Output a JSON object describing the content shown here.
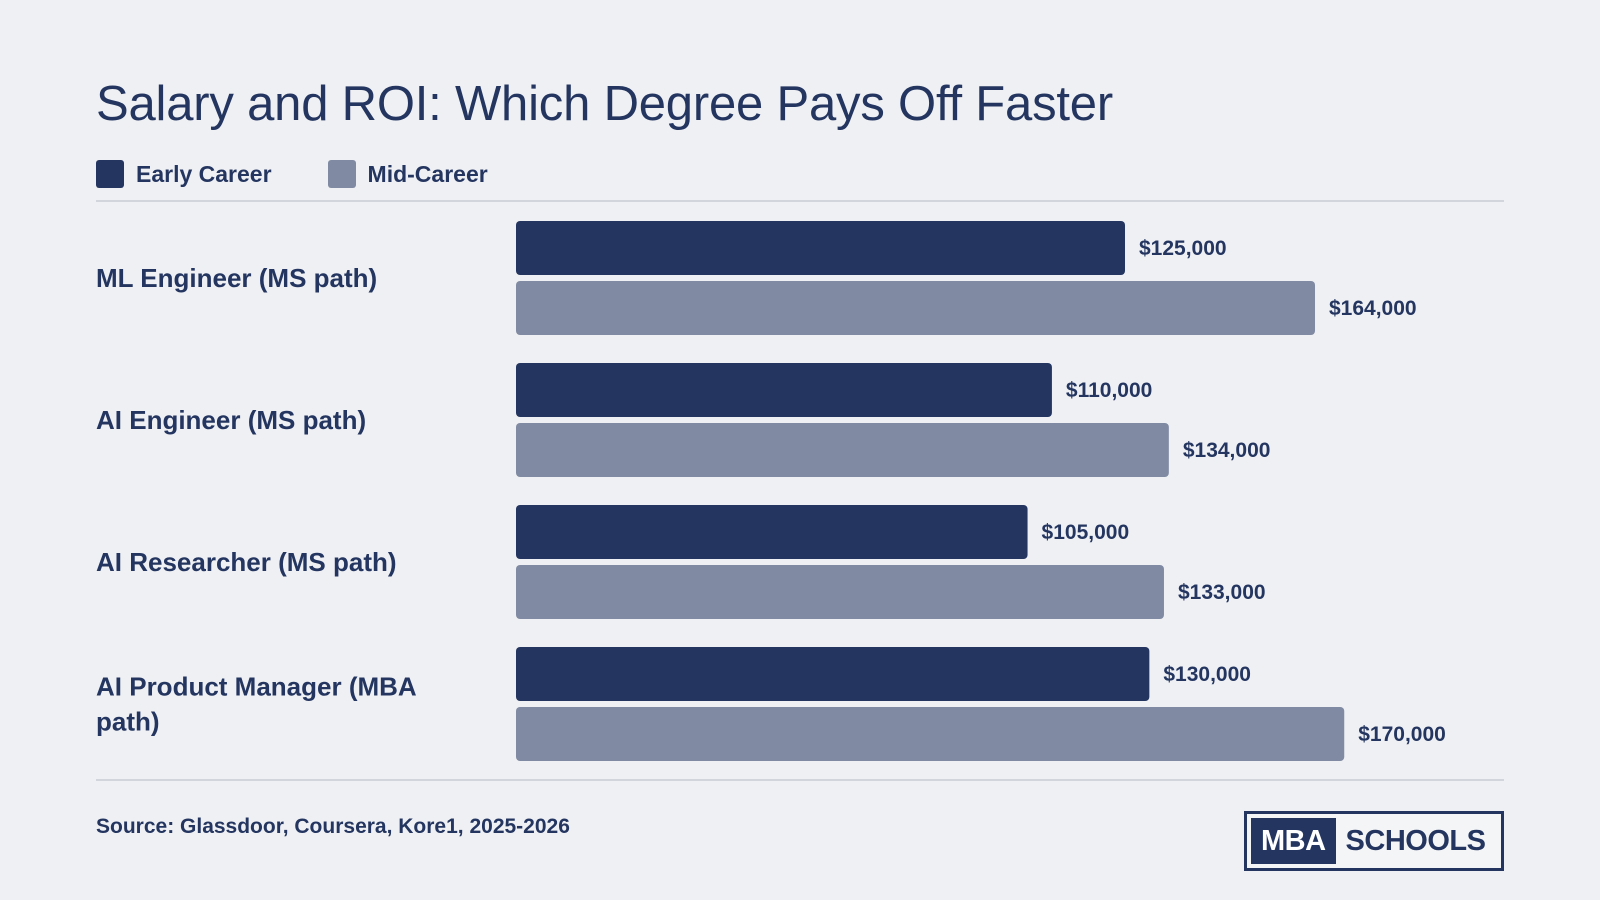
{
  "title": "Salary and ROI: Which Degree Pays Off Faster",
  "legend": [
    {
      "label": "Early Career",
      "color": "#243660"
    },
    {
      "label": "Mid-Career",
      "color": "#808ba3"
    }
  ],
  "source": "Source: Glassdoor, Coursera, Kore1, 2025-2026",
  "logo": {
    "part1": "MBA",
    "part2": "SCHOOLS"
  },
  "chart_data": {
    "type": "bar",
    "orientation": "horizontal",
    "categories": [
      "ML Engineer (MS path)",
      "AI Engineer (MS path)",
      "AI Researcher (MS path)",
      "AI Product Manager (MBA path)"
    ],
    "series": [
      {
        "name": "Early Career",
        "color": "#243660",
        "values": [
          125000,
          110000,
          105000,
          130000
        ],
        "labels": [
          "$125,000",
          "$110,000",
          "$105,000",
          "$130,000"
        ]
      },
      {
        "name": "Mid-Career",
        "color": "#808ba3",
        "values": [
          164000,
          134000,
          133000,
          170000
        ],
        "labels": [
          "$164,000",
          "$134,000",
          "$133,000",
          "$170,000"
        ]
      }
    ],
    "xlim": [
      0,
      200000
    ],
    "grid": false,
    "legend_position": "top-left"
  }
}
